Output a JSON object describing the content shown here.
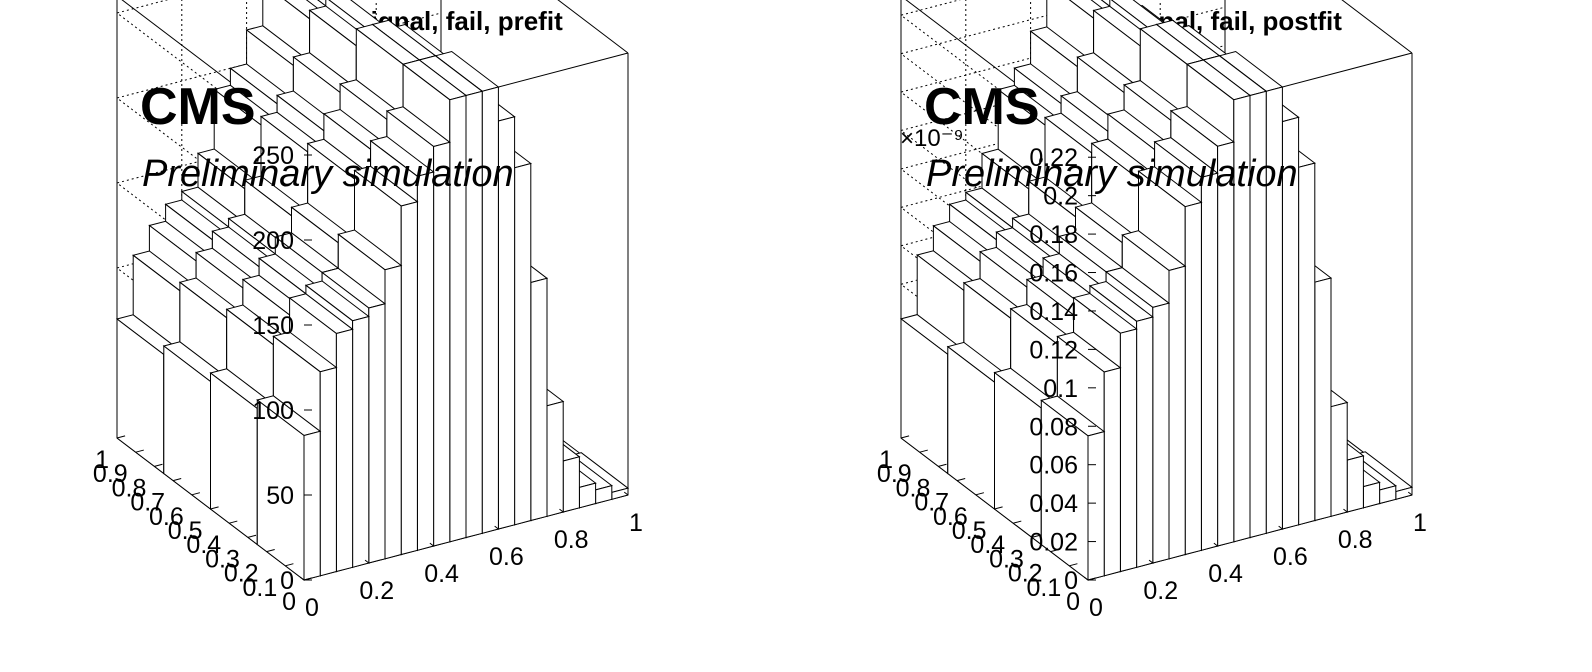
{
  "panels": [
    {
      "title": "Signal, fail, prefit",
      "cms_label": "CMS",
      "sublabel": "Preliminary simulation",
      "exponent_label": "",
      "z_tick_labels": [
        "0",
        "50",
        "100",
        "150",
        "200",
        "250"
      ],
      "x_tick_labels": [
        "0",
        "0.2",
        "0.4",
        "0.6",
        "0.8",
        "1"
      ],
      "y_tick_labels": [
        "0",
        "0.1",
        "0.2",
        "0.3",
        "0.4",
        "0.5",
        "0.6",
        "0.7",
        "0.8",
        "0.9",
        "1"
      ]
    },
    {
      "title": "Signal, fail, postfit",
      "cms_label": "CMS",
      "sublabel": "Preliminary simulation",
      "exponent_label": "×10⁻⁹",
      "z_tick_labels": [
        "0",
        "0.02",
        "0.04",
        "0.06",
        "0.08",
        "0.1",
        "0.12",
        "0.14",
        "0.16",
        "0.18",
        "0.2",
        "0.22"
      ],
      "x_tick_labels": [
        "0",
        "0.2",
        "0.4",
        "0.6",
        "0.8",
        "1"
      ],
      "y_tick_labels": [
        "0",
        "0.1",
        "0.2",
        "0.3",
        "0.4",
        "0.5",
        "0.6",
        "0.7",
        "0.8",
        "0.9",
        "1"
      ]
    }
  ],
  "chart_data": [
    {
      "type": "lego",
      "title": "Signal, fail, prefit",
      "xlim": [
        0,
        1
      ],
      "ylim": [
        0,
        1
      ],
      "zlim": [
        0,
        260
      ],
      "x_bins": 20,
      "y_slice_values": [
        [
          85,
          120,
          140,
          145,
          150,
          170,
          205,
          220,
          235,
          265,
          270,
          265,
          240,
          210,
          140,
          65,
          30,
          12,
          8,
          4
        ],
        [
          80,
          115,
          130,
          140,
          150,
          165,
          200,
          215,
          230,
          260,
          265,
          255,
          230,
          200,
          130,
          60,
          28,
          10,
          7,
          3
        ],
        [
          75,
          110,
          125,
          135,
          140,
          160,
          195,
          205,
          225,
          250,
          255,
          245,
          220,
          190,
          120,
          55,
          25,
          9,
          6,
          3
        ],
        [
          70,
          105,
          120,
          130,
          135,
          155,
          190,
          200,
          220,
          245,
          250,
          240,
          215,
          180,
          115,
          50,
          22,
          8,
          5,
          2
        ]
      ],
      "grid": true
    },
    {
      "type": "lego",
      "title": "Signal, fail, postfit",
      "xlim": [
        0,
        1
      ],
      "ylim": [
        0,
        1
      ],
      "zlim": [
        0,
        0.23
      ],
      "z_exponent": -9,
      "x_bins": 20,
      "y_slice_values": [
        [
          0.075,
          0.106,
          0.124,
          0.128,
          0.133,
          0.15,
          0.181,
          0.194,
          0.208,
          0.234,
          0.239,
          0.234,
          0.212,
          0.186,
          0.124,
          0.057,
          0.027,
          0.011,
          0.007,
          0.004
        ],
        [
          0.071,
          0.102,
          0.115,
          0.124,
          0.133,
          0.146,
          0.177,
          0.19,
          0.203,
          0.23,
          0.234,
          0.225,
          0.203,
          0.177,
          0.115,
          0.053,
          0.025,
          0.009,
          0.006,
          0.003
        ],
        [
          0.066,
          0.097,
          0.111,
          0.119,
          0.124,
          0.141,
          0.172,
          0.181,
          0.199,
          0.221,
          0.225,
          0.217,
          0.194,
          0.168,
          0.106,
          0.049,
          0.022,
          0.008,
          0.005,
          0.003
        ],
        [
          0.062,
          0.093,
          0.106,
          0.115,
          0.119,
          0.137,
          0.168,
          0.177,
          0.194,
          0.217,
          0.221,
          0.212,
          0.19,
          0.159,
          0.102,
          0.044,
          0.019,
          0.007,
          0.004,
          0.002
        ]
      ],
      "grid": true
    }
  ]
}
